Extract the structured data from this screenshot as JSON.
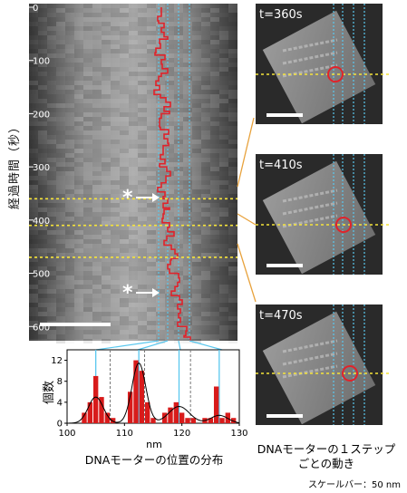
{
  "kymograph": {
    "ylabel": "経過時間（秒）",
    "yticks": [
      "0",
      "100",
      "200",
      "300",
      "400",
      "500",
      "600"
    ],
    "yrange": [
      0,
      620
    ],
    "marked_times": [
      360,
      410,
      470
    ],
    "asterisk": "*"
  },
  "histogram": {
    "ylabel": "個数",
    "xlabel": "nm",
    "caption": "DNAモーターの位置の分布",
    "xticks": [
      "100",
      "110",
      "120",
      "130"
    ],
    "yticks": [
      "0",
      "4",
      "8",
      "12"
    ]
  },
  "snapshots": {
    "caption_line1": "DNAモーターの１ステップ",
    "caption_line2": "ごとの動き",
    "items": [
      {
        "label": "t=360s"
      },
      {
        "label": "t=410s"
      },
      {
        "label": "t=470s"
      }
    ]
  },
  "scalebar_note": "スケールバー：50 nm",
  "chart_data": {
    "type": "bar",
    "title": "",
    "xlabel": "nm",
    "ylabel": "個数",
    "xlim": [
      100,
      130
    ],
    "ylim": [
      0,
      14
    ],
    "x": [
      103,
      104,
      105,
      106,
      107,
      108,
      111,
      112,
      113,
      114,
      115,
      117,
      118,
      119,
      120,
      121,
      122,
      124,
      125,
      126,
      127,
      128,
      129
    ],
    "values": [
      2,
      4,
      9,
      5,
      2,
      1,
      6,
      12,
      10,
      4,
      1,
      2,
      3,
      4,
      2,
      1,
      1,
      1,
      1,
      7,
      1,
      2,
      1
    ],
    "fit_peaks_nm": [
      105,
      112.5,
      119.5,
      126.5
    ],
    "colors": {
      "bars": "#d81b1b",
      "fit": "#000000",
      "lines": "#5ac8ef",
      "dashes": "#666666"
    }
  }
}
